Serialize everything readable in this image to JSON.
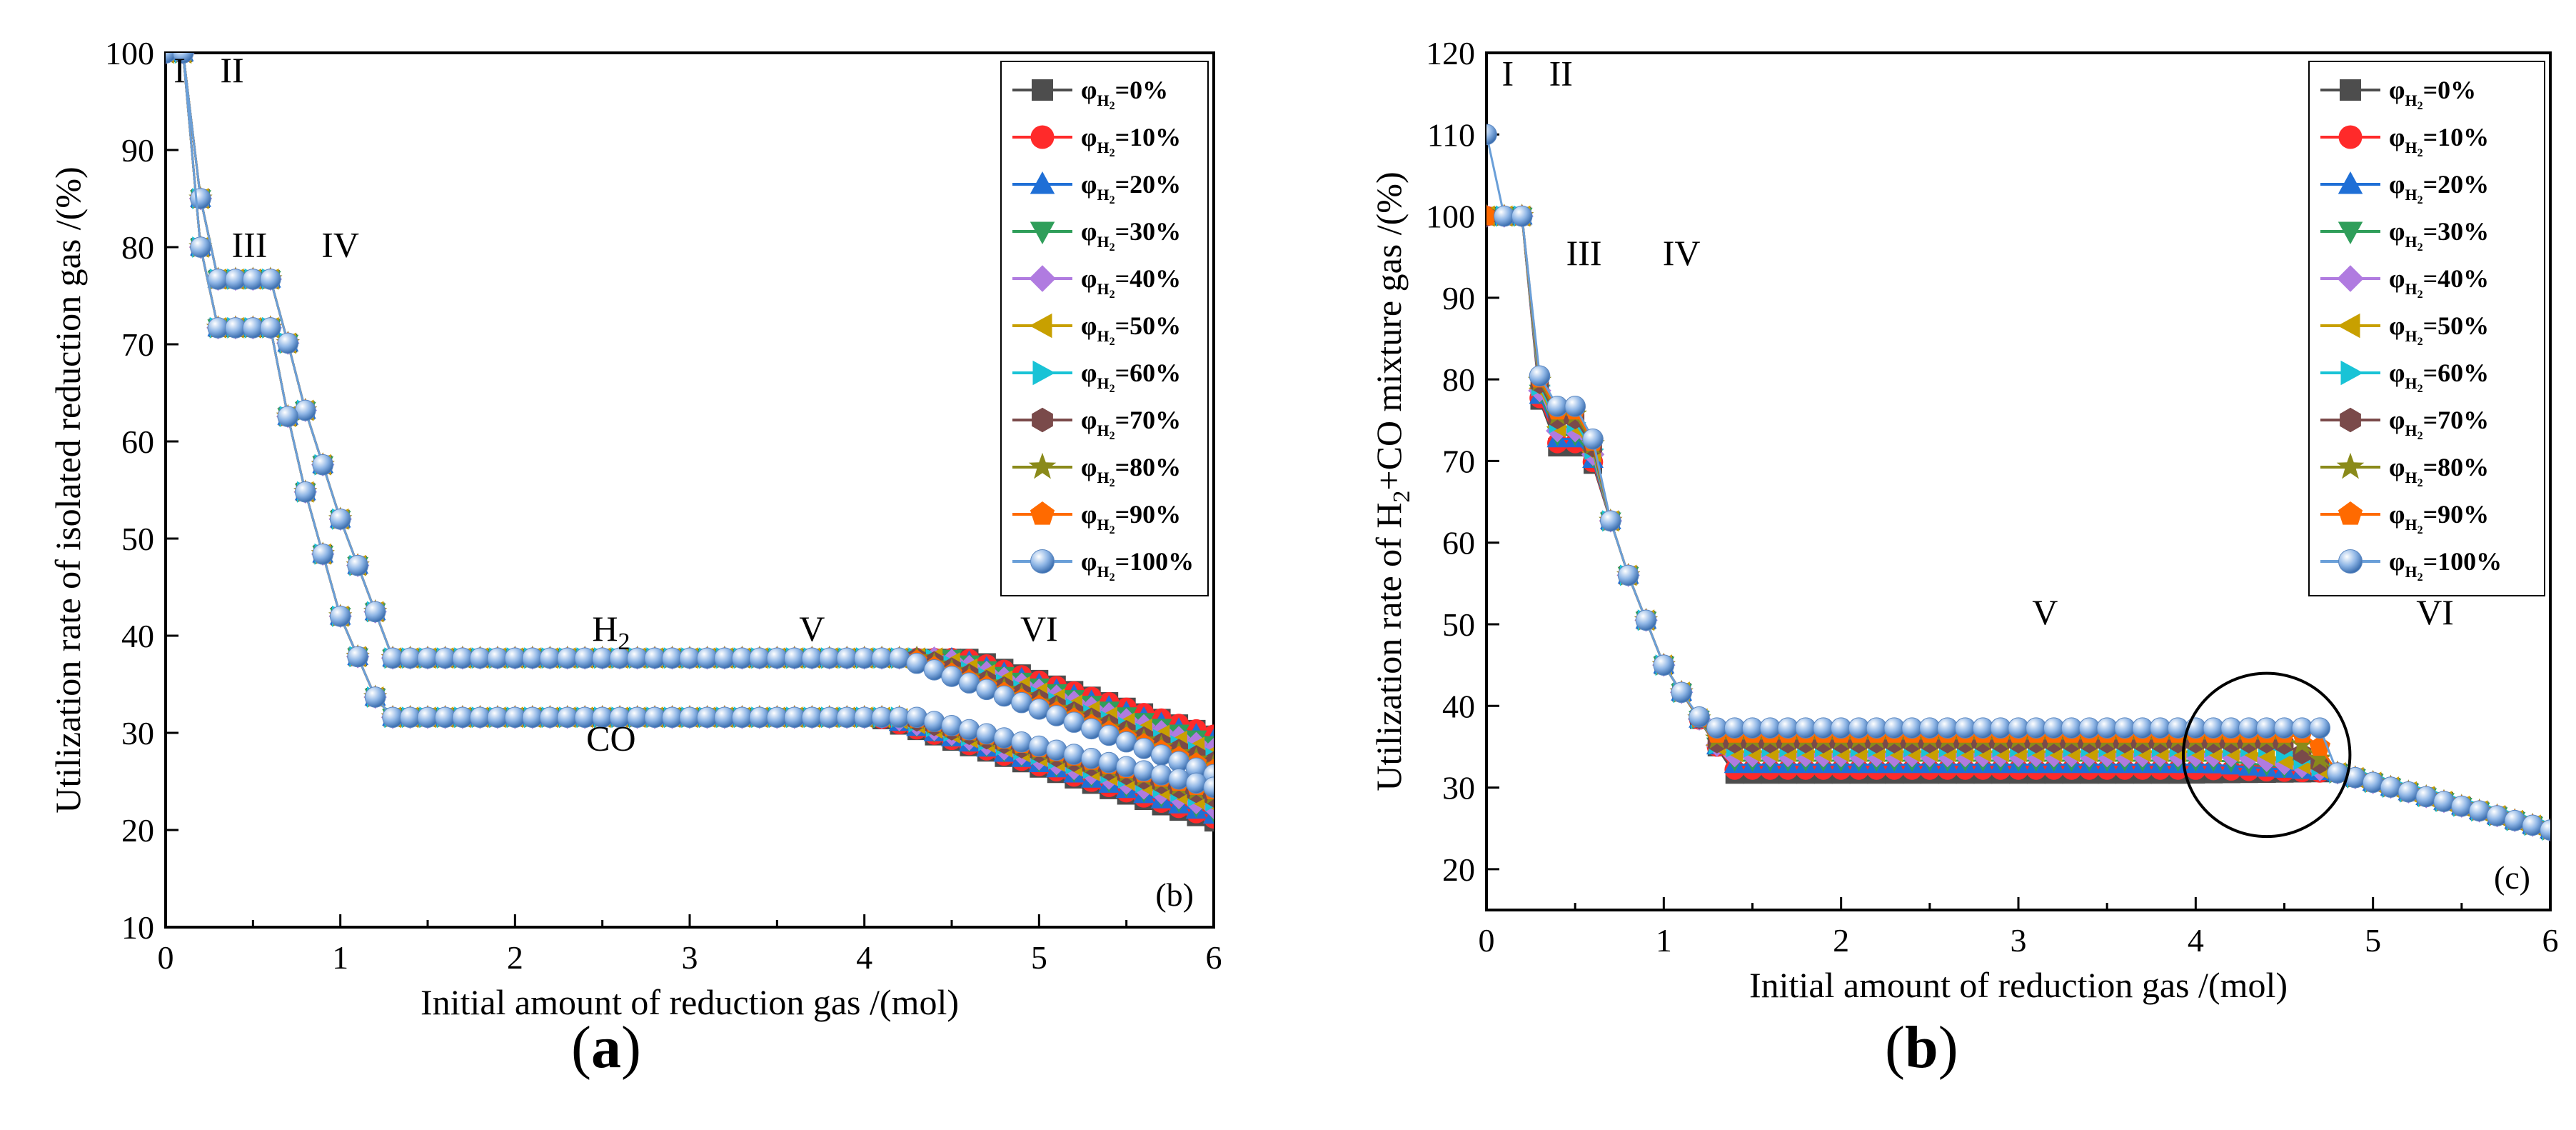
{
  "figure": {
    "caption_a_letter": "a",
    "caption_b_letter": "b",
    "caption_open": "(",
    "caption_close": ")"
  },
  "legend_labels": [
    "0%",
    "10%",
    "20%",
    "30%",
    "40%",
    "50%",
    "60%",
    "70%",
    "80%",
    "90%",
    "100%"
  ],
  "legend_prefix": "φ",
  "legend_sub": "H",
  "legend_sub2": "2",
  "legend_eq": "=",
  "colors": {
    "series": [
      "#4d4d4d",
      "#ff2a2a",
      "#1f6fd6",
      "#2f9e5a",
      "#b07be0",
      "#c8a000",
      "#19c3d6",
      "#7a4a4a",
      "#8a8a1a",
      "#ff6a00",
      "#6a9fd8"
    ],
    "axis": "#000000"
  },
  "markers": [
    "square",
    "circle",
    "triangle-up",
    "triangle-down",
    "diamond",
    "triangle-left",
    "triangle-right",
    "hexagon",
    "star",
    "pentagon",
    "sphere"
  ],
  "chart_data": [
    {
      "type": "line",
      "panel_tag": "(b)",
      "xlabel": "Initial amount of reduction gas /(mol)",
      "ylabel": "Utilization rate of isolated reduction gas /(%)",
      "xlim": [
        0,
        6
      ],
      "ylim": [
        10,
        100
      ],
      "xticks": [
        0,
        1,
        2,
        3,
        4,
        5,
        6
      ],
      "yticks": [
        10,
        20,
        30,
        40,
        50,
        60,
        70,
        80,
        90,
        100
      ],
      "x_step": 0.1,
      "annotations": [
        {
          "text": "I",
          "x": 0.08,
          "y": 97
        },
        {
          "text": "II",
          "x": 0.38,
          "y": 97
        },
        {
          "text": "III",
          "x": 0.48,
          "y": 79
        },
        {
          "text": "IV",
          "x": 1.0,
          "y": 79
        },
        {
          "text": "H",
          "sub": "2",
          "x": 2.55,
          "y": 39.5
        },
        {
          "text": "V",
          "x": 3.7,
          "y": 39.5
        },
        {
          "text": "VI",
          "x": 5.0,
          "y": 39.5
        },
        {
          "text": "CO",
          "x": 2.55,
          "y": 28.2
        }
      ],
      "series_model": {
        "description": "H2 and CO curves per series; shares of each fraction",
        "h2_plateau": 37.7,
        "co_plateau": 31.6,
        "stage3_h2": 76.7,
        "stage3_co": 71.7,
        "end_h2": [
          29.8,
          29.8,
          29.3,
          28.8,
          28.3,
          27.9,
          27.4,
          27.0,
          26.6,
          26.2,
          25.7
        ],
        "end_co": [
          20.8,
          21.2,
          21.5,
          21.9,
          22.3,
          22.7,
          23.0,
          23.4,
          23.7,
          24.1,
          24.4
        ],
        "turn_h2": [
          4.62,
          4.58,
          4.54,
          4.5,
          4.46,
          4.42,
          4.38,
          4.34,
          4.3,
          4.26,
          4.22
        ],
        "turn_co": [
          4.05,
          4.07,
          4.1,
          4.12,
          4.15,
          4.17,
          4.2,
          4.22,
          4.25,
          4.27,
          4.3
        ]
      }
    },
    {
      "type": "line",
      "panel_tag": "(c)",
      "xlabel": "Initial amount of reduction gas /(mol)",
      "ylabel_prefix": "Utilization rate of H",
      "ylabel_sub": "2",
      "ylabel_suffix": "+CO mixture gas /(%)",
      "xlim": [
        0,
        6
      ],
      "ylim": [
        15,
        120
      ],
      "xticks": [
        0,
        1,
        2,
        3,
        4,
        5,
        6
      ],
      "yticks": [
        20,
        30,
        40,
        50,
        60,
        70,
        80,
        90,
        100,
        110,
        120
      ],
      "annotations": [
        {
          "text": "I",
          "x": 0.12,
          "y": 116
        },
        {
          "text": "II",
          "x": 0.42,
          "y": 116
        },
        {
          "text": "III",
          "x": 0.55,
          "y": 94
        },
        {
          "text": "IV",
          "x": 1.1,
          "y": 94
        },
        {
          "text": "V",
          "x": 3.15,
          "y": 50
        },
        {
          "text": "VI",
          "x": 5.35,
          "y": 50
        }
      ],
      "circle_highlight": {
        "x": 4.4,
        "y": 34,
        "rx": 0.47,
        "ry": 10
      },
      "series_model": {
        "plateau": [
          31.6,
          32.2,
          32.8,
          33.3,
          33.9,
          34.4,
          35.0,
          35.5,
          36.0,
          36.6,
          37.3
        ],
        "stage3": [
          71.7,
          72.2,
          72.7,
          73.2,
          73.7,
          74.2,
          74.7,
          75.2,
          75.7,
          76.2,
          76.7
        ],
        "tail_end": 24.8
      }
    }
  ]
}
